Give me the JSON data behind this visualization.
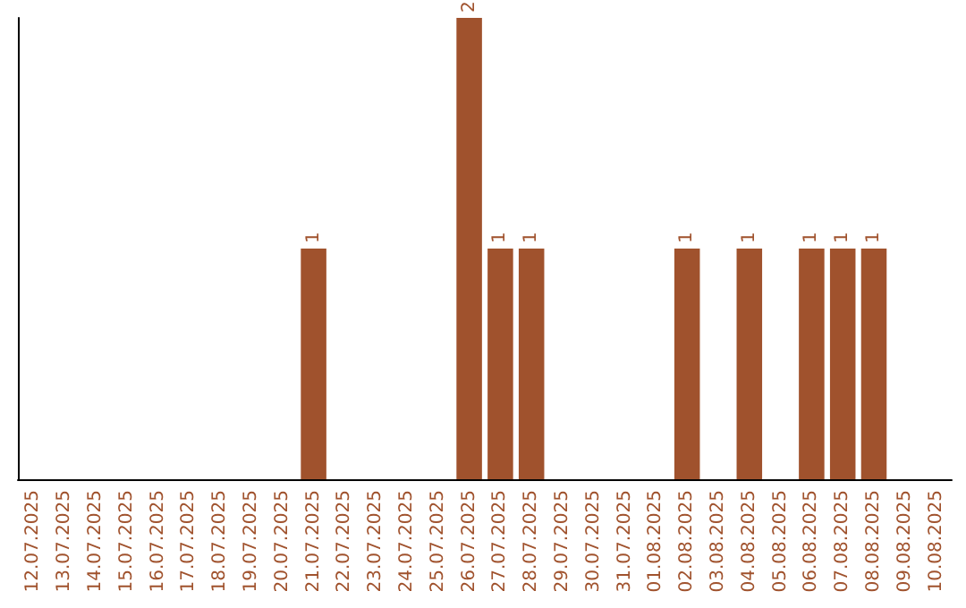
{
  "chart_data": {
    "type": "bar",
    "categories": [
      "12.07.2025",
      "13.07.2025",
      "14.07.2025",
      "15.07.2025",
      "16.07.2025",
      "17.07.2025",
      "18.07.2025",
      "19.07.2025",
      "20.07.2025",
      "21.07.2025",
      "22.07.2025",
      "23.07.2025",
      "24.07.2025",
      "25.07.2025",
      "26.07.2025",
      "27.07.2025",
      "28.07.2025",
      "29.07.2025",
      "30.07.2025",
      "31.07.2025",
      "01.08.2025",
      "02.08.2025",
      "03.08.2025",
      "04.08.2025",
      "05.08.2025",
      "06.08.2025",
      "07.08.2025",
      "08.08.2025",
      "09.08.2025",
      "10.08.2025"
    ],
    "values": [
      0,
      0,
      0,
      0,
      0,
      0,
      0,
      0,
      0,
      1,
      0,
      0,
      0,
      0,
      2,
      1,
      1,
      0,
      0,
      0,
      0,
      1,
      0,
      1,
      0,
      1,
      1,
      1,
      0,
      0
    ],
    "value_labels": [
      null,
      null,
      null,
      null,
      null,
      null,
      null,
      null,
      null,
      "1",
      null,
      null,
      null,
      null,
      "2",
      "1",
      "1",
      null,
      null,
      null,
      null,
      "1",
      null,
      "1",
      null,
      "1",
      "1",
      "1",
      null,
      null
    ],
    "color": "#a0522d",
    "tick_labels": "x",
    "grid": false
  }
}
